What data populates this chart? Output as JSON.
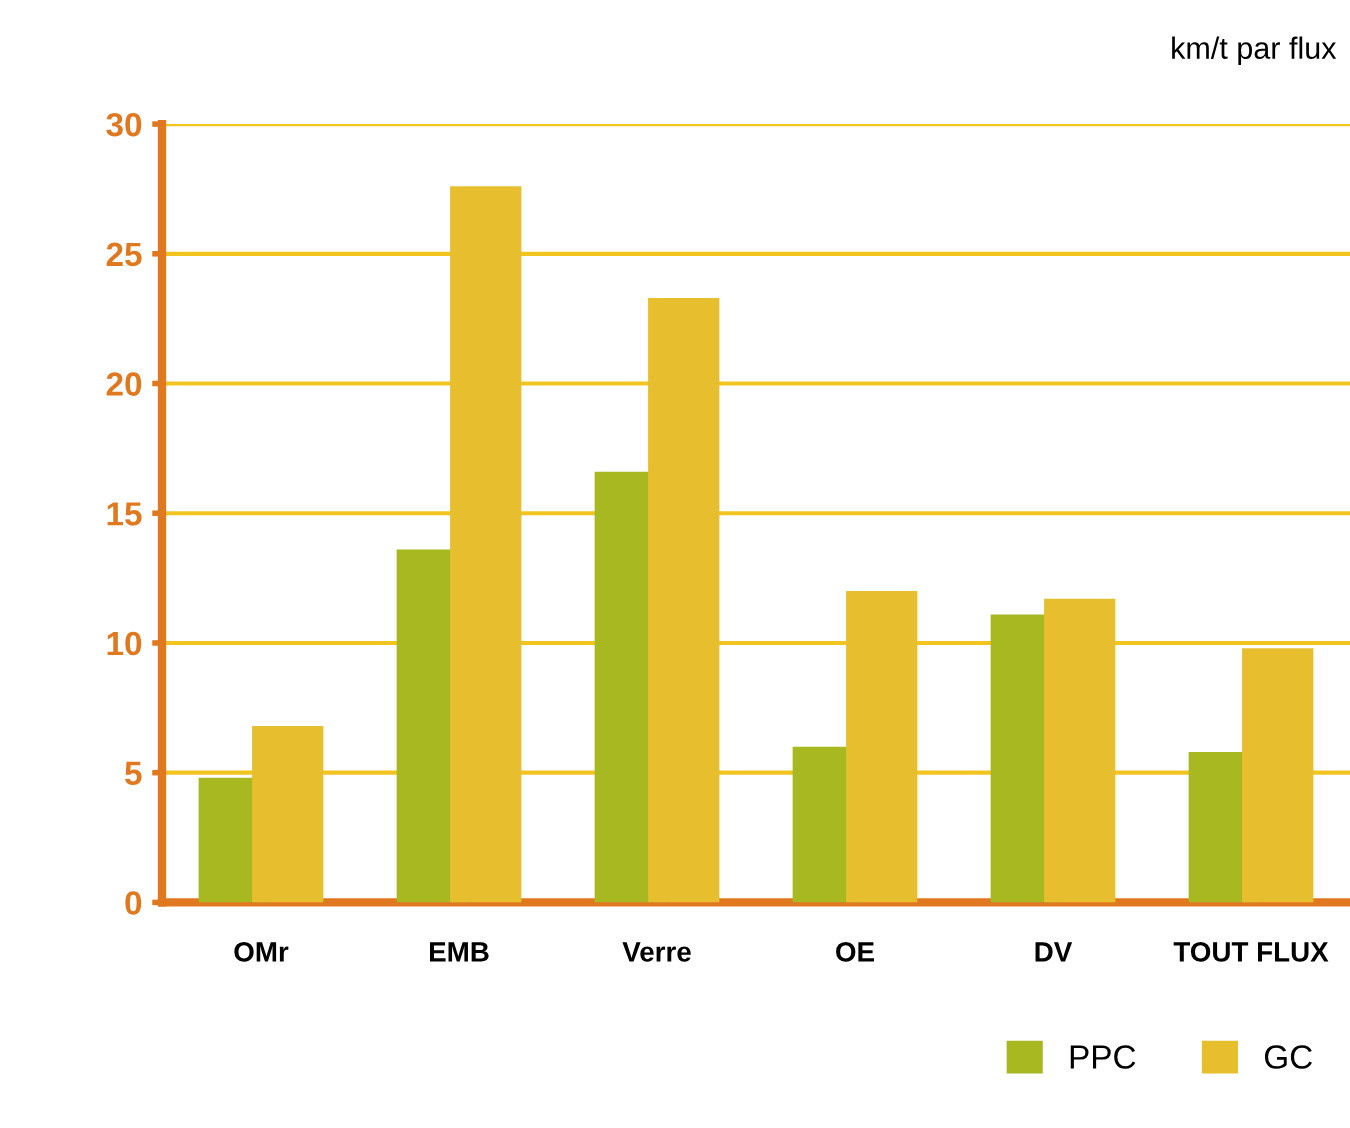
{
  "chart_data": {
    "type": "bar",
    "subtitle": "km/t par flux",
    "categories": [
      "OMr",
      "EMB",
      "Verre",
      "OE",
      "DV",
      "TOUT FLUX"
    ],
    "series": [
      {
        "name": "PPC",
        "color": "#a8b820",
        "values": [
          4.8,
          13.6,
          16.6,
          6.0,
          11.1,
          5.8
        ]
      },
      {
        "name": "GC",
        "color": "#e6be2e",
        "values": [
          6.8,
          27.6,
          23.3,
          12.0,
          11.7,
          9.8
        ]
      }
    ],
    "ylim": [
      0,
      30
    ],
    "yticks": [
      0,
      5,
      10,
      15,
      20,
      25,
      30
    ],
    "grid": "y",
    "legend": "bottom right"
  }
}
